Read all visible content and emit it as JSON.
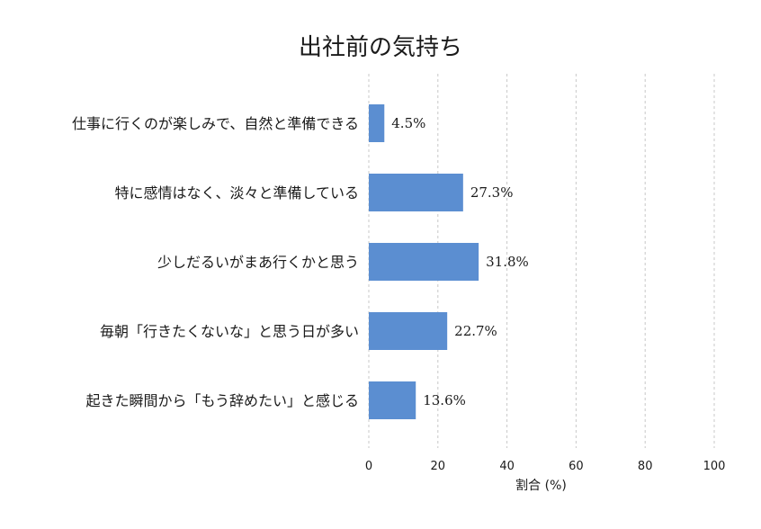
{
  "chart_data": {
    "type": "bar",
    "orientation": "horizontal",
    "title": "出社前の気持ち",
    "xlabel": "割合 (%)",
    "ylabel": "",
    "xlim": [
      0,
      100
    ],
    "xticks": [
      0,
      20,
      40,
      60,
      80,
      100
    ],
    "grid": true,
    "legend": "none",
    "bar_color": "#5b8ed1",
    "categories": [
      "仕事に行くのが楽しみで、自然と準備できる",
      "特に感情はなく、淡々と準備している",
      "少しだるいがまあ行くかと思う",
      "毎朝「行きたくないな」と思う日が多い",
      "起きた瞬間から「もう辞めたい」と感じる"
    ],
    "values": [
      4.5,
      27.3,
      31.8,
      22.7,
      13.6
    ],
    "value_labels": [
      "4.5%",
      "27.3%",
      "31.8%",
      "22.7%",
      "13.6%"
    ]
  }
}
